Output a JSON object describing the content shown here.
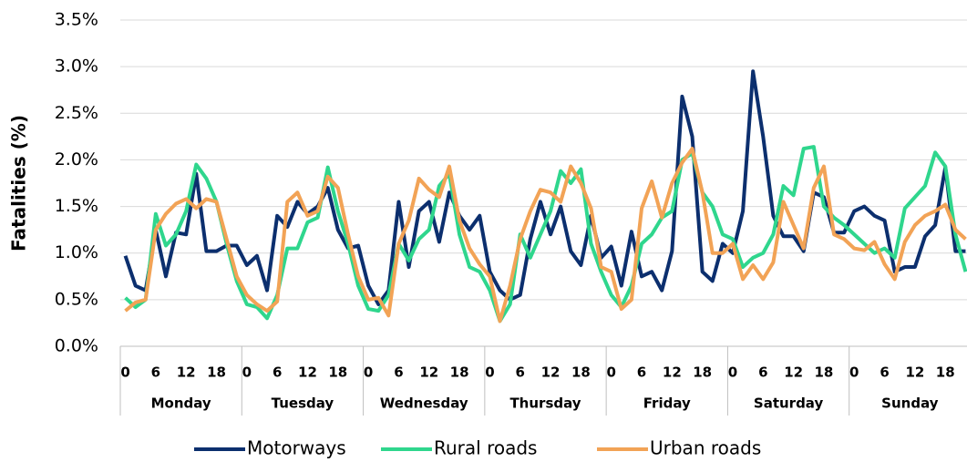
{
  "chart_data": {
    "type": "line",
    "y_label": "Fatalities (%)",
    "days": [
      "Monday",
      "Tuesday",
      "Wednesday",
      "Thursday",
      "Friday",
      "Saturday",
      "Sunday"
    ],
    "categories": [
      "0",
      null,
      null,
      "6",
      null,
      null,
      "12",
      null,
      null,
      "18",
      null,
      null,
      "0",
      null,
      null,
      "6",
      null,
      null,
      "12",
      null,
      null,
      "18",
      null,
      null,
      "0",
      null,
      null,
      "6",
      null,
      null,
      "12",
      null,
      null,
      "18",
      null,
      null,
      "0",
      null,
      null,
      "6",
      null,
      null,
      "12",
      null,
      null,
      "18",
      null,
      null,
      "0",
      null,
      null,
      "6",
      null,
      null,
      "12",
      null,
      null,
      "18",
      null,
      null,
      "0",
      null,
      null,
      "6",
      null,
      null,
      "12",
      null,
      null,
      "18",
      null,
      null,
      "0",
      null,
      null,
      "6",
      null,
      null,
      "12",
      null,
      null,
      "18",
      null,
      null
    ],
    "series": [
      {
        "name": "Motorways",
        "color": "#0c2f6e",
        "values": [
          0.97,
          0.65,
          0.6,
          1.25,
          0.75,
          1.22,
          1.2,
          1.85,
          1.02,
          1.02,
          1.08,
          1.08,
          0.87,
          0.97,
          0.6,
          1.4,
          1.28,
          1.55,
          1.42,
          1.5,
          1.7,
          1.25,
          1.05,
          1.08,
          0.65,
          0.45,
          0.6,
          1.55,
          0.85,
          1.45,
          1.55,
          1.12,
          1.65,
          1.4,
          1.25,
          1.4,
          0.8,
          0.6,
          0.5,
          0.55,
          1.15,
          1.55,
          1.2,
          1.5,
          1.02,
          0.87,
          1.4,
          0.95,
          1.07,
          0.65,
          1.23,
          0.75,
          0.8,
          0.6,
          1.02,
          2.68,
          2.25,
          0.8,
          0.7,
          1.1,
          1.0,
          1.45,
          2.95,
          2.25,
          1.4,
          1.18,
          1.18,
          1.02,
          1.65,
          1.6,
          1.22,
          1.22,
          1.45,
          1.5,
          1.4,
          1.35,
          0.8,
          0.85,
          0.85,
          1.18,
          1.3,
          1.92,
          1.02,
          1.02
        ]
      },
      {
        "name": "Rural roads",
        "color": "#2fd68d",
        "values": [
          0.52,
          0.42,
          0.5,
          1.42,
          1.08,
          1.2,
          1.45,
          1.95,
          1.8,
          1.55,
          1.1,
          0.7,
          0.45,
          0.42,
          0.3,
          0.55,
          1.05,
          1.05,
          1.33,
          1.38,
          1.92,
          1.45,
          1.1,
          0.65,
          0.4,
          0.38,
          0.55,
          1.1,
          0.92,
          1.15,
          1.25,
          1.72,
          1.85,
          1.2,
          0.85,
          0.8,
          0.6,
          0.27,
          0.45,
          1.2,
          0.95,
          1.2,
          1.45,
          1.88,
          1.75,
          1.9,
          1.1,
          0.8,
          0.55,
          0.42,
          0.65,
          1.1,
          1.2,
          1.38,
          1.45,
          2.0,
          2.07,
          1.65,
          1.5,
          1.2,
          1.15,
          0.85,
          0.95,
          1.0,
          1.2,
          1.72,
          1.62,
          2.12,
          2.14,
          1.5,
          1.38,
          1.3,
          1.2,
          1.1,
          1.0,
          1.05,
          0.95,
          1.48,
          1.6,
          1.72,
          2.08,
          1.93,
          1.2,
          0.8
        ]
      },
      {
        "name": "Urban roads",
        "color": "#f2a356",
        "values": [
          0.38,
          0.47,
          0.5,
          1.25,
          1.42,
          1.53,
          1.58,
          1.48,
          1.58,
          1.55,
          1.15,
          0.75,
          0.55,
          0.45,
          0.38,
          0.48,
          1.55,
          1.65,
          1.4,
          1.45,
          1.82,
          1.7,
          1.2,
          0.75,
          0.5,
          0.52,
          0.33,
          1.1,
          1.35,
          1.8,
          1.68,
          1.6,
          1.93,
          1.35,
          1.05,
          0.88,
          0.75,
          0.27,
          0.65,
          1.15,
          1.45,
          1.68,
          1.65,
          1.55,
          1.93,
          1.75,
          1.48,
          0.85,
          0.8,
          0.4,
          0.5,
          1.48,
          1.77,
          1.38,
          1.75,
          1.97,
          2.12,
          1.65,
          1.0,
          1.0,
          1.1,
          0.72,
          0.87,
          0.72,
          0.9,
          1.55,
          1.3,
          1.05,
          1.7,
          1.93,
          1.2,
          1.15,
          1.05,
          1.03,
          1.12,
          0.88,
          0.72,
          1.12,
          1.3,
          1.4,
          1.45,
          1.52,
          1.25,
          1.15
        ]
      }
    ],
    "ylim": [
      0,
      3.5
    ],
    "yticks": [
      {
        "value": 0,
        "label": "0.0%"
      },
      {
        "value": 0.5,
        "label": "0.5%"
      },
      {
        "value": 1,
        "label": "1.0%"
      },
      {
        "value": 1.5,
        "label": "1.5%"
      },
      {
        "value": 2,
        "label": "2.0%"
      },
      {
        "value": 2.5,
        "label": "2.5%"
      },
      {
        "value": 3,
        "label": "3.0%"
      },
      {
        "value": 3.5,
        "label": "3.5%"
      }
    ],
    "grid": true,
    "legend": "bottom"
  }
}
